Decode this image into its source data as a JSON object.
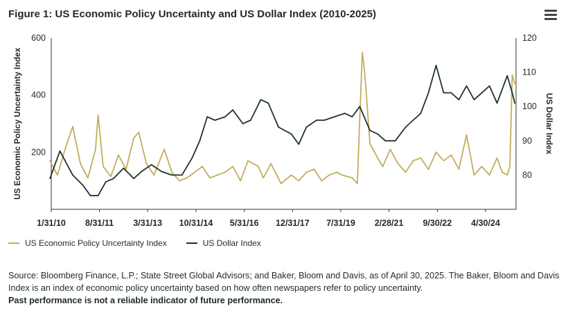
{
  "title": "Figure 1: US Economic Policy Uncertainty and US Dollar Index (2010-2025)",
  "menu_icon": "hamburger-menu-icon",
  "chart_data": {
    "type": "line",
    "x_tick_labels": [
      "1/31/10",
      "8/31/11",
      "3/31/13",
      "10/31/14",
      "5/31/16",
      "12/31/17",
      "7/31/19",
      "2/28/21",
      "9/30/22",
      "4/30/24"
    ],
    "x_tick_dates": [
      "2010-01-31",
      "2011-08-31",
      "2013-03-31",
      "2014-10-31",
      "2016-05-31",
      "2017-12-31",
      "2019-07-31",
      "2021-02-28",
      "2022-09-30",
      "2024-04-30"
    ],
    "x_range": [
      "2010-01-31",
      "2025-04-30"
    ],
    "left_axis": {
      "label": "US Economic Policy Uncertainty Index",
      "ylim": [
        0,
        600
      ],
      "ticks": [
        200,
        400,
        600
      ]
    },
    "right_axis": {
      "label": "US Dollar Index",
      "ylim": [
        70,
        120
      ],
      "ticks": [
        80,
        90,
        100,
        110,
        120
      ]
    },
    "series": [
      {
        "name": "US Economic Policy Uncertainty Index",
        "axis": "left",
        "color": "#c2ad5d",
        "x": [
          "2010-01",
          "2010-04",
          "2010-07",
          "2010-10",
          "2011-01",
          "2011-04",
          "2011-07",
          "2011-08",
          "2011-10",
          "2012-01",
          "2012-04",
          "2012-07",
          "2012-10",
          "2012-12",
          "2013-03",
          "2013-06",
          "2013-10",
          "2014-01",
          "2014-04",
          "2014-07",
          "2014-10",
          "2015-01",
          "2015-04",
          "2015-07",
          "2015-10",
          "2016-01",
          "2016-04",
          "2016-07",
          "2016-11",
          "2017-01",
          "2017-04",
          "2017-08",
          "2017-12",
          "2018-03",
          "2018-06",
          "2018-09",
          "2018-12",
          "2019-03",
          "2019-06",
          "2019-08",
          "2019-12",
          "2020-02",
          "2020-03",
          "2020-04",
          "2020-05",
          "2020-07",
          "2020-10",
          "2020-12",
          "2021-03",
          "2021-06",
          "2021-09",
          "2021-12",
          "2022-03",
          "2022-06",
          "2022-09",
          "2022-12",
          "2023-03",
          "2023-06",
          "2023-09",
          "2023-12",
          "2024-03",
          "2024-06",
          "2024-09",
          "2024-11",
          "2025-01",
          "2025-02",
          "2025-03",
          "2025-04"
        ],
        "values": [
          170,
          120,
          210,
          290,
          160,
          110,
          210,
          330,
          150,
          115,
          190,
          140,
          250,
          270,
          160,
          120,
          210,
          130,
          100,
          110,
          130,
          150,
          110,
          120,
          130,
          150,
          100,
          170,
          150,
          110,
          160,
          90,
          120,
          100,
          130,
          140,
          100,
          120,
          130,
          120,
          110,
          90,
          320,
          550,
          470,
          230,
          180,
          150,
          210,
          160,
          130,
          170,
          180,
          140,
          200,
          170,
          190,
          140,
          260,
          120,
          150,
          120,
          180,
          130,
          120,
          150,
          470,
          440
        ]
      },
      {
        "name": "US Dollar Index",
        "axis": "right",
        "color": "#1f3326",
        "x": [
          "2010-01",
          "2010-05",
          "2010-10",
          "2011-02",
          "2011-05",
          "2011-08",
          "2011-11",
          "2012-02",
          "2012-06",
          "2012-10",
          "2013-01",
          "2013-05",
          "2013-09",
          "2014-01",
          "2014-05",
          "2014-09",
          "2014-12",
          "2015-03",
          "2015-06",
          "2015-10",
          "2016-01",
          "2016-05",
          "2016-08",
          "2016-12",
          "2017-03",
          "2017-07",
          "2017-12",
          "2018-03",
          "2018-06",
          "2018-10",
          "2019-01",
          "2019-05",
          "2019-09",
          "2019-12",
          "2020-03",
          "2020-07",
          "2020-10",
          "2021-01",
          "2021-05",
          "2021-09",
          "2021-12",
          "2022-03",
          "2022-06",
          "2022-09",
          "2022-12",
          "2023-03",
          "2023-06",
          "2023-09",
          "2023-12",
          "2024-03",
          "2024-06",
          "2024-09",
          "2024-12",
          "2025-01",
          "2025-03",
          "2025-04"
        ],
        "values": [
          79,
          87,
          80,
          77,
          74,
          74,
          78,
          79,
          82,
          79,
          81,
          83,
          81,
          80,
          80,
          85,
          90,
          97,
          96,
          97,
          99,
          95,
          96,
          102,
          101,
          94,
          92,
          89,
          94,
          96,
          96,
          97,
          98,
          97,
          100,
          93,
          92,
          90,
          90,
          94,
          96,
          98,
          104,
          112,
          104,
          104,
          102,
          106,
          102,
          104,
          106,
          101,
          107,
          109,
          104,
          101
        ]
      }
    ]
  },
  "source": {
    "text": "Source: Bloomberg Finance, L.P.; State Street Global Advisors; and Baker, Bloom and Davis, as of April 30, 2025. The Baker, Bloom and Davis Index is an index of economic policy uncertainty based on how often newspapers refer to policy uncertainty.",
    "disclaimer": "Past performance is not a reliable indicator of future performance."
  }
}
